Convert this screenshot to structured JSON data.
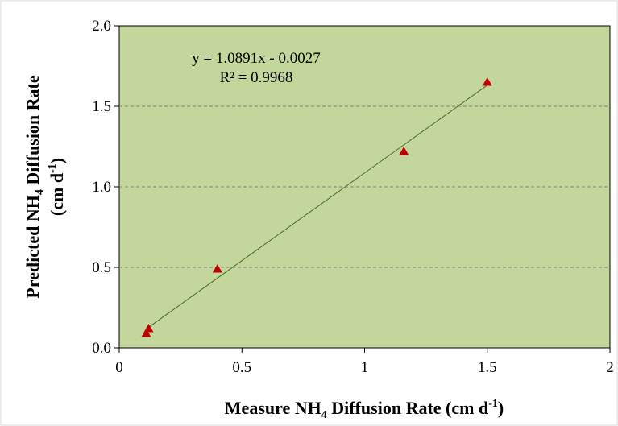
{
  "chart_data": {
    "type": "scatter",
    "xlim": [
      0,
      2
    ],
    "ylim": [
      0,
      2
    ],
    "x_ticks": [
      0,
      0.5,
      1,
      1.5,
      2
    ],
    "x_tick_labels": [
      "0",
      "0.5",
      "1",
      "1.5",
      "2"
    ],
    "y_ticks": [
      0,
      0.5,
      1,
      1.5,
      2
    ],
    "y_tick_labels": [
      "0.0",
      "0.5",
      "1.0",
      "1.5",
      "2.0"
    ],
    "xlabel": {
      "pre": "Measure NH",
      "sub": "4",
      "mid": " Diffusion Rate (cm d",
      "sup": "-1",
      "post": ")"
    },
    "ylabel": {
      "line1_pre": "Predicted NH",
      "line1_sub": "4",
      "line1_post": " Diffusion Rate",
      "line2_pre": "(cm d",
      "line2_sup": "-1",
      "line2_post": ")"
    },
    "series": [
      {
        "marker": "triangle",
        "color": "#c00000",
        "points": [
          {
            "x": 0.11,
            "y": 0.09
          },
          {
            "x": 0.12,
            "y": 0.12
          },
          {
            "x": 0.4,
            "y": 0.49
          },
          {
            "x": 1.16,
            "y": 1.22
          },
          {
            "x": 1.5,
            "y": 1.65
          }
        ]
      }
    ],
    "trendline": {
      "slope": 1.0891,
      "intercept": -0.0027,
      "x_range": [
        0.11,
        1.5
      ],
      "color": "#4a6a2a"
    },
    "annotations": {
      "equation": "y = 1.0891x - 0.0027",
      "r2": "R² = 0.9968"
    },
    "plot_background": "#c3d69b",
    "grid": {
      "y": true,
      "x": false,
      "style": "dashed"
    }
  }
}
